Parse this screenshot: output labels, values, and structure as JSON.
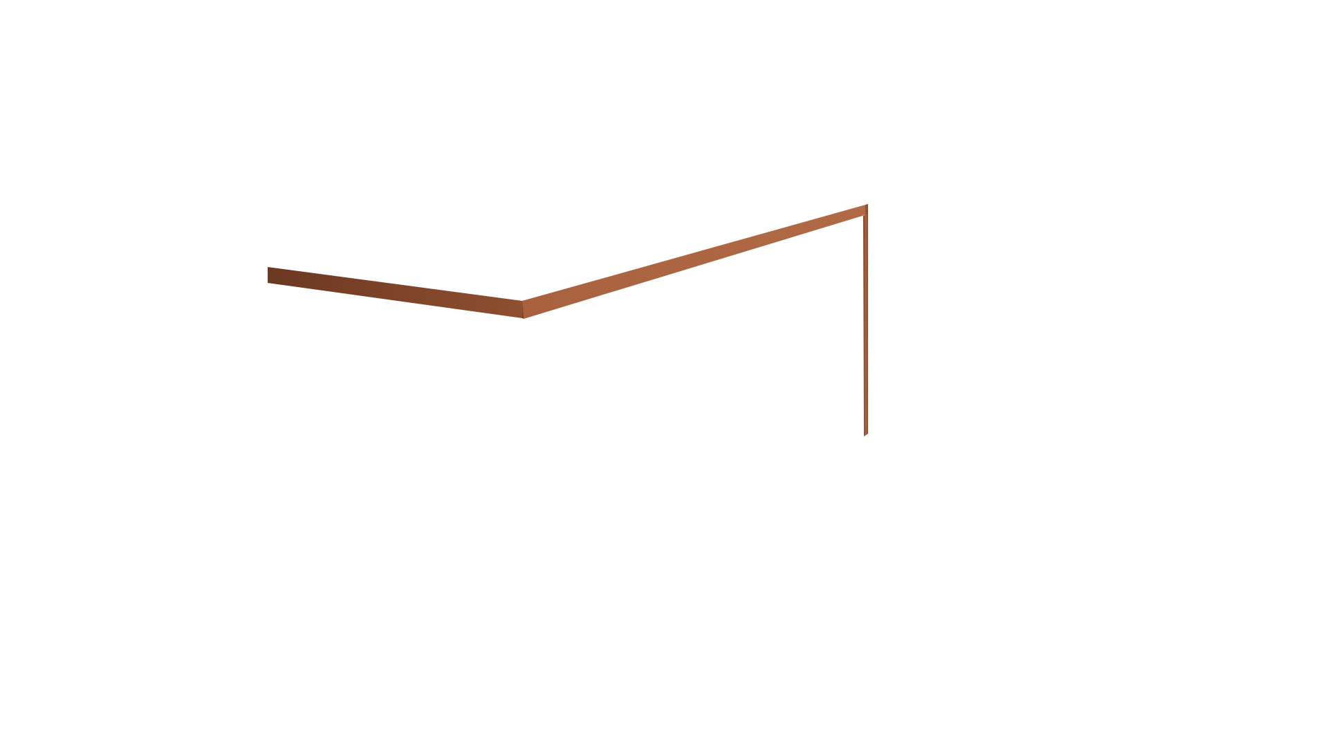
{
  "scene": {
    "background_color": "#ffffff",
    "object": "wooden-angled-frame",
    "colors": {
      "wood_dark": "#7a4128",
      "wood_mid": "#8f4f30",
      "wood_light": "#a8623f",
      "wood_highlight": "#b06a45",
      "wood_shadow": "#6b3822"
    }
  }
}
